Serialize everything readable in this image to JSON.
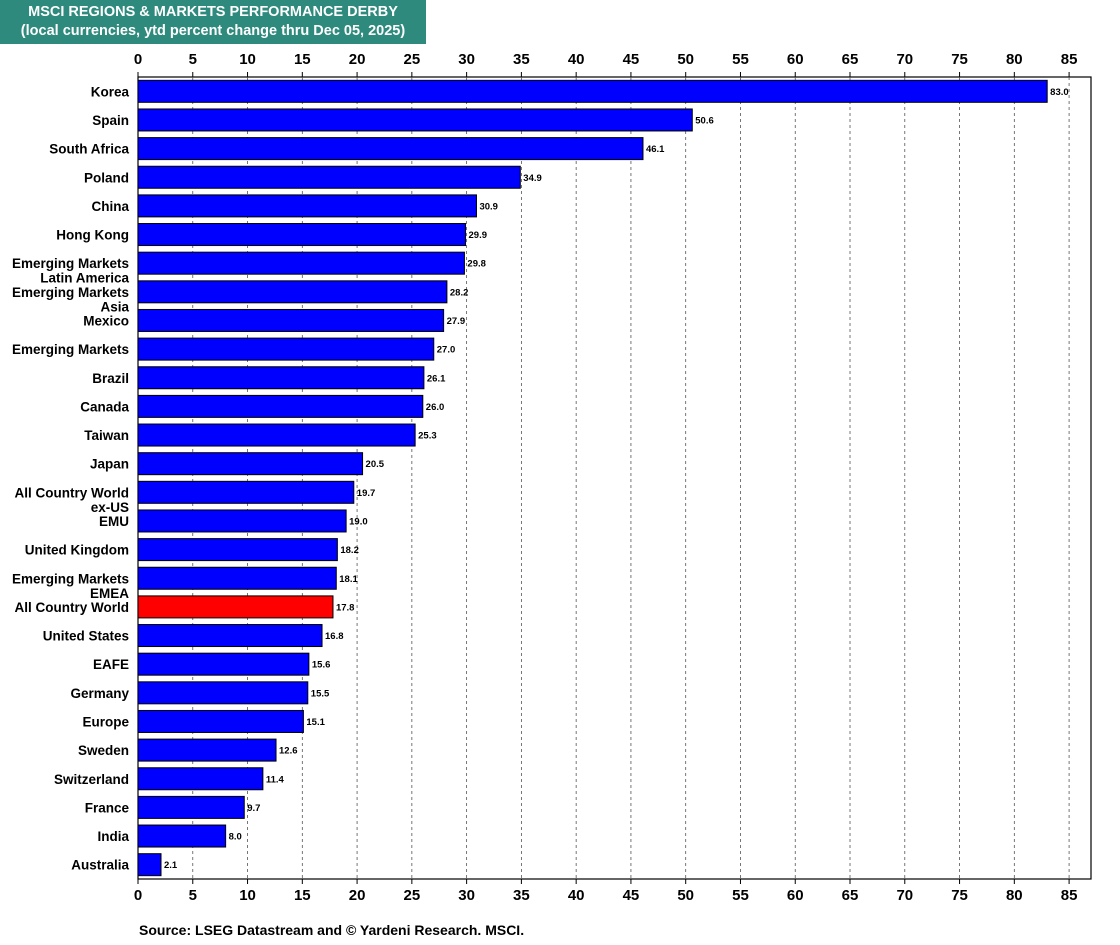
{
  "chart_data": {
    "type": "bar",
    "orientation": "horizontal",
    "title": "MSCI REGIONS & MARKETS PERFORMANCE DERBY",
    "subtitle": "(local currencies, ytd percent change thru Dec 05, 2025)",
    "xlim": [
      0,
      87
    ],
    "ticks": [
      0,
      5,
      10,
      15,
      20,
      25,
      30,
      35,
      40,
      45,
      50,
      55,
      60,
      65,
      70,
      75,
      80,
      85
    ],
    "grid": true,
    "colors": {
      "default_bar": "#0000ff",
      "highlight_bar": "#ff0000",
      "title_bg": "#2e8a7d"
    },
    "categories": [
      {
        "label": [
          "Korea"
        ],
        "value": 83.0,
        "value_label": "83.0",
        "highlight": false
      },
      {
        "label": [
          "Spain"
        ],
        "value": 50.6,
        "value_label": "50.6",
        "highlight": false
      },
      {
        "label": [
          "South Africa"
        ],
        "value": 46.1,
        "value_label": "46.1",
        "highlight": false
      },
      {
        "label": [
          "Poland"
        ],
        "value": 34.9,
        "value_label": "34.9",
        "highlight": false
      },
      {
        "label": [
          "China"
        ],
        "value": 30.9,
        "value_label": "30.9",
        "highlight": false
      },
      {
        "label": [
          "Hong Kong"
        ],
        "value": 29.9,
        "value_label": "29.9",
        "highlight": false
      },
      {
        "label": [
          "Emerging Markets",
          "Latin America"
        ],
        "value": 29.8,
        "value_label": "29.8",
        "highlight": false
      },
      {
        "label": [
          "Emerging Markets",
          "Asia"
        ],
        "value": 28.2,
        "value_label": "28.2",
        "highlight": false
      },
      {
        "label": [
          "Mexico"
        ],
        "value": 27.9,
        "value_label": "27.9",
        "highlight": false
      },
      {
        "label": [
          "Emerging Markets"
        ],
        "value": 27.0,
        "value_label": "27.0",
        "highlight": false
      },
      {
        "label": [
          "Brazil"
        ],
        "value": 26.1,
        "value_label": "26.1",
        "highlight": false
      },
      {
        "label": [
          "Canada"
        ],
        "value": 26.0,
        "value_label": "26.0",
        "highlight": false
      },
      {
        "label": [
          "Taiwan"
        ],
        "value": 25.3,
        "value_label": "25.3",
        "highlight": false
      },
      {
        "label": [
          "Japan"
        ],
        "value": 20.5,
        "value_label": "20.5",
        "highlight": false
      },
      {
        "label": [
          "All Country World",
          "ex-US"
        ],
        "value": 19.7,
        "value_label": "19.7",
        "highlight": false
      },
      {
        "label": [
          "EMU"
        ],
        "value": 19.0,
        "value_label": "19.0",
        "highlight": false
      },
      {
        "label": [
          "United Kingdom"
        ],
        "value": 18.2,
        "value_label": "18.2",
        "highlight": false
      },
      {
        "label": [
          "Emerging Markets",
          "EMEA"
        ],
        "value": 18.1,
        "value_label": "18.1",
        "highlight": false
      },
      {
        "label": [
          "All Country World"
        ],
        "value": 17.8,
        "value_label": "17.8",
        "highlight": true
      },
      {
        "label": [
          "United States"
        ],
        "value": 16.8,
        "value_label": "16.8",
        "highlight": false
      },
      {
        "label": [
          "EAFE"
        ],
        "value": 15.6,
        "value_label": "15.6",
        "highlight": false
      },
      {
        "label": [
          "Germany"
        ],
        "value": 15.5,
        "value_label": "15.5",
        "highlight": false
      },
      {
        "label": [
          "Europe"
        ],
        "value": 15.1,
        "value_label": "15.1",
        "highlight": false
      },
      {
        "label": [
          "Sweden"
        ],
        "value": 12.6,
        "value_label": "12.6",
        "highlight": false
      },
      {
        "label": [
          "Switzerland"
        ],
        "value": 11.4,
        "value_label": "11.4",
        "highlight": false
      },
      {
        "label": [
          "France"
        ],
        "value": 9.7,
        "value_label": "9.7",
        "highlight": false
      },
      {
        "label": [
          "India"
        ],
        "value": 8.0,
        "value_label": "8.0",
        "highlight": false
      },
      {
        "label": [
          "Australia"
        ],
        "value": 2.1,
        "value_label": "2.1",
        "highlight": false
      }
    ],
    "source": "Source: LSEG Datastream and © Yardeni Research. MSCI."
  }
}
